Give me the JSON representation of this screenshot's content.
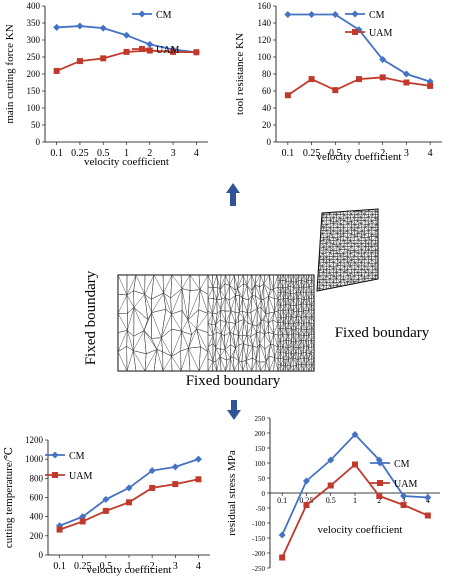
{
  "chart_data": [
    {
      "type": "line",
      "categories": [
        "0.1",
        "0.25",
        "0.5",
        "1",
        "2",
        "3",
        "4"
      ],
      "xlabel": "velocity coefficient",
      "ylabel": "main cutting  force KN",
      "ylim": [
        0,
        400
      ],
      "yticks": [
        0,
        50,
        100,
        150,
        200,
        250,
        300,
        350,
        400
      ],
      "legend": "top-right",
      "series": [
        {
          "name": "CM",
          "color": "#4472C4",
          "marker": "diamond",
          "values": [
            337,
            341,
            335,
            314,
            287,
            272,
            264
          ]
        },
        {
          "name": "UAM",
          "color": "#C0392B",
          "marker": "square",
          "values": [
            209,
            238,
            246,
            265,
            269,
            265,
            264
          ]
        }
      ]
    },
    {
      "type": "line",
      "categories": [
        "0.1",
        "0.25",
        "0.5",
        "1",
        "2",
        "3",
        "4"
      ],
      "xlabel": "velocity coefficient",
      "ylabel": "tool resistance KN",
      "ylim": [
        0,
        160
      ],
      "yticks": [
        0,
        20,
        40,
        60,
        80,
        100,
        120,
        140,
        160
      ],
      "legend": "top-right",
      "series": [
        {
          "name": "CM",
          "color": "#4472C4",
          "marker": "diamond",
          "values": [
            150,
            150,
            150,
            132,
            97,
            80,
            71
          ]
        },
        {
          "name": "UAM",
          "color": "#C0392B",
          "marker": "square",
          "values": [
            55,
            74,
            61,
            74,
            76,
            70,
            66
          ]
        }
      ]
    },
    {
      "type": "line",
      "categories": [
        "0.1",
        "0.25",
        "0.5",
        "1",
        "2",
        "3",
        "4"
      ],
      "xlabel": "velocity coefficient",
      "ylabel": "cutting temperature/℃",
      "ylim": [
        0,
        1200
      ],
      "yticks": [
        0,
        200,
        400,
        600,
        800,
        1000,
        1200
      ],
      "legend": "top-left",
      "series": [
        {
          "name": "CM",
          "color": "#4472C4",
          "marker": "diamond",
          "values": [
            305,
            400,
            580,
            700,
            880,
            920,
            1000
          ]
        },
        {
          "name": "UAM",
          "color": "#C0392B",
          "marker": "square",
          "values": [
            265,
            350,
            460,
            550,
            700,
            740,
            790
          ]
        }
      ]
    },
    {
      "type": "line",
      "categories": [
        "0.1",
        "0.25",
        "0.5",
        "1",
        "2",
        "3",
        "4"
      ],
      "xlabel": "velocity coefficient",
      "ylabel": "residual stress MPa",
      "ylim": [
        -250,
        250
      ],
      "yticks": [
        -250,
        -200,
        -150,
        -100,
        -50,
        0,
        50,
        100,
        150,
        200,
        250
      ],
      "legend": "right",
      "series": [
        {
          "name": "CM",
          "color": "#4472C4",
          "marker": "diamond",
          "values": [
            -140,
            40,
            110,
            195,
            110,
            -10,
            -15
          ]
        },
        {
          "name": "UAM",
          "color": "#C0392B",
          "marker": "square",
          "values": [
            -215,
            -40,
            25,
            95,
            -10,
            -40,
            -75
          ]
        }
      ]
    }
  ],
  "diagram": {
    "labels": {
      "left": "Fixed boundary",
      "right": "Fixed boundary",
      "bottom": "Fixed boundary"
    },
    "arrow_color": "#2F5597"
  }
}
